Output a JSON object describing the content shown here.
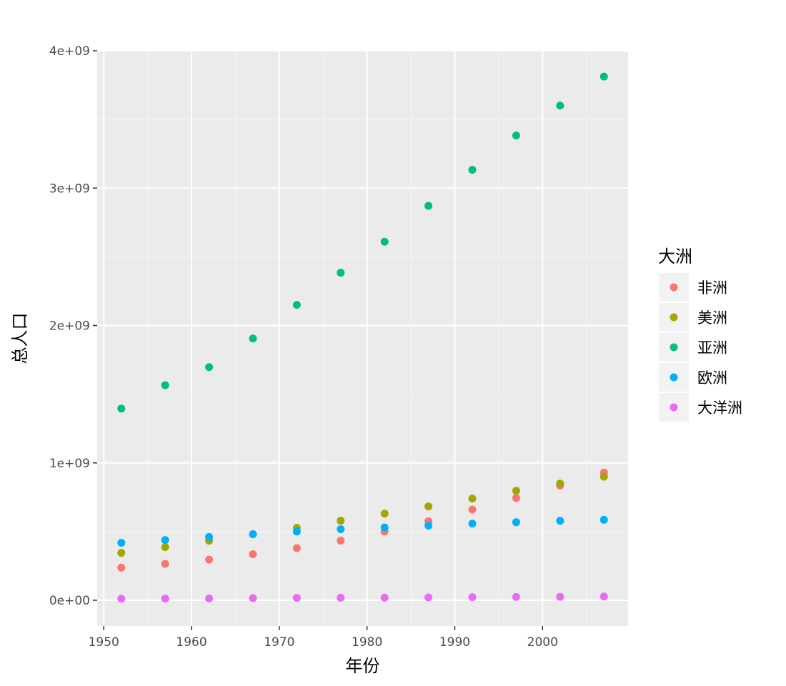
{
  "chart_data": {
    "type": "scatter",
    "xlabel": "年份",
    "ylabel": "总人口",
    "xlim": [
      1949.25,
      2009.75
    ],
    "ylim": [
      -190000000,
      4000000000
    ],
    "x_ticks": [
      1950,
      1960,
      1970,
      1980,
      1990,
      2000
    ],
    "x_tick_labels": [
      "1950",
      "1960",
      "1970",
      "1980",
      "1990",
      "2000"
    ],
    "y_ticks": [
      0,
      1000000000,
      2000000000,
      3000000000,
      4000000000
    ],
    "y_tick_labels": [
      "0e+00",
      "1e+09",
      "2e+09",
      "3e+09",
      "4e+09"
    ],
    "grid": true,
    "legend": {
      "title": "大洲",
      "position": "right"
    },
    "x": [
      1952,
      1957,
      1962,
      1967,
      1972,
      1977,
      1982,
      1987,
      1992,
      1997,
      2002,
      2007
    ],
    "series": [
      {
        "name": "非洲",
        "color": "#F8766D",
        "values": [
          237000000,
          265000000,
          296000000,
          335000000,
          379000000,
          434000000,
          500000000,
          575000000,
          660000000,
          744000000,
          834000000,
          929000000
        ]
      },
      {
        "name": "美洲",
        "color": "#A3A500",
        "values": [
          345000000,
          387000000,
          433000000,
          480000000,
          527000000,
          579000000,
          631000000,
          683000000,
          740000000,
          797000000,
          849000000,
          899000000
        ]
      },
      {
        "name": "亚洲",
        "color": "#00BF7D",
        "values": [
          1395000000,
          1565000000,
          1697000000,
          1905000000,
          2150000000,
          2384000000,
          2610000000,
          2871000000,
          3133000000,
          3383000000,
          3601000000,
          3812000000
        ]
      },
      {
        "name": "欧洲",
        "color": "#00B0F6",
        "values": [
          418000000,
          438000000,
          461000000,
          481000000,
          500000000,
          517000000,
          530000000,
          543000000,
          558000000,
          568000000,
          578000000,
          586000000
        ]
      },
      {
        "name": "大洋洲",
        "color": "#E76BF3",
        "values": [
          11000000,
          12000000,
          13000000,
          15000000,
          17000000,
          18000000,
          19000000,
          21000000,
          23000000,
          24000000,
          25000000,
          27000000
        ]
      }
    ]
  }
}
